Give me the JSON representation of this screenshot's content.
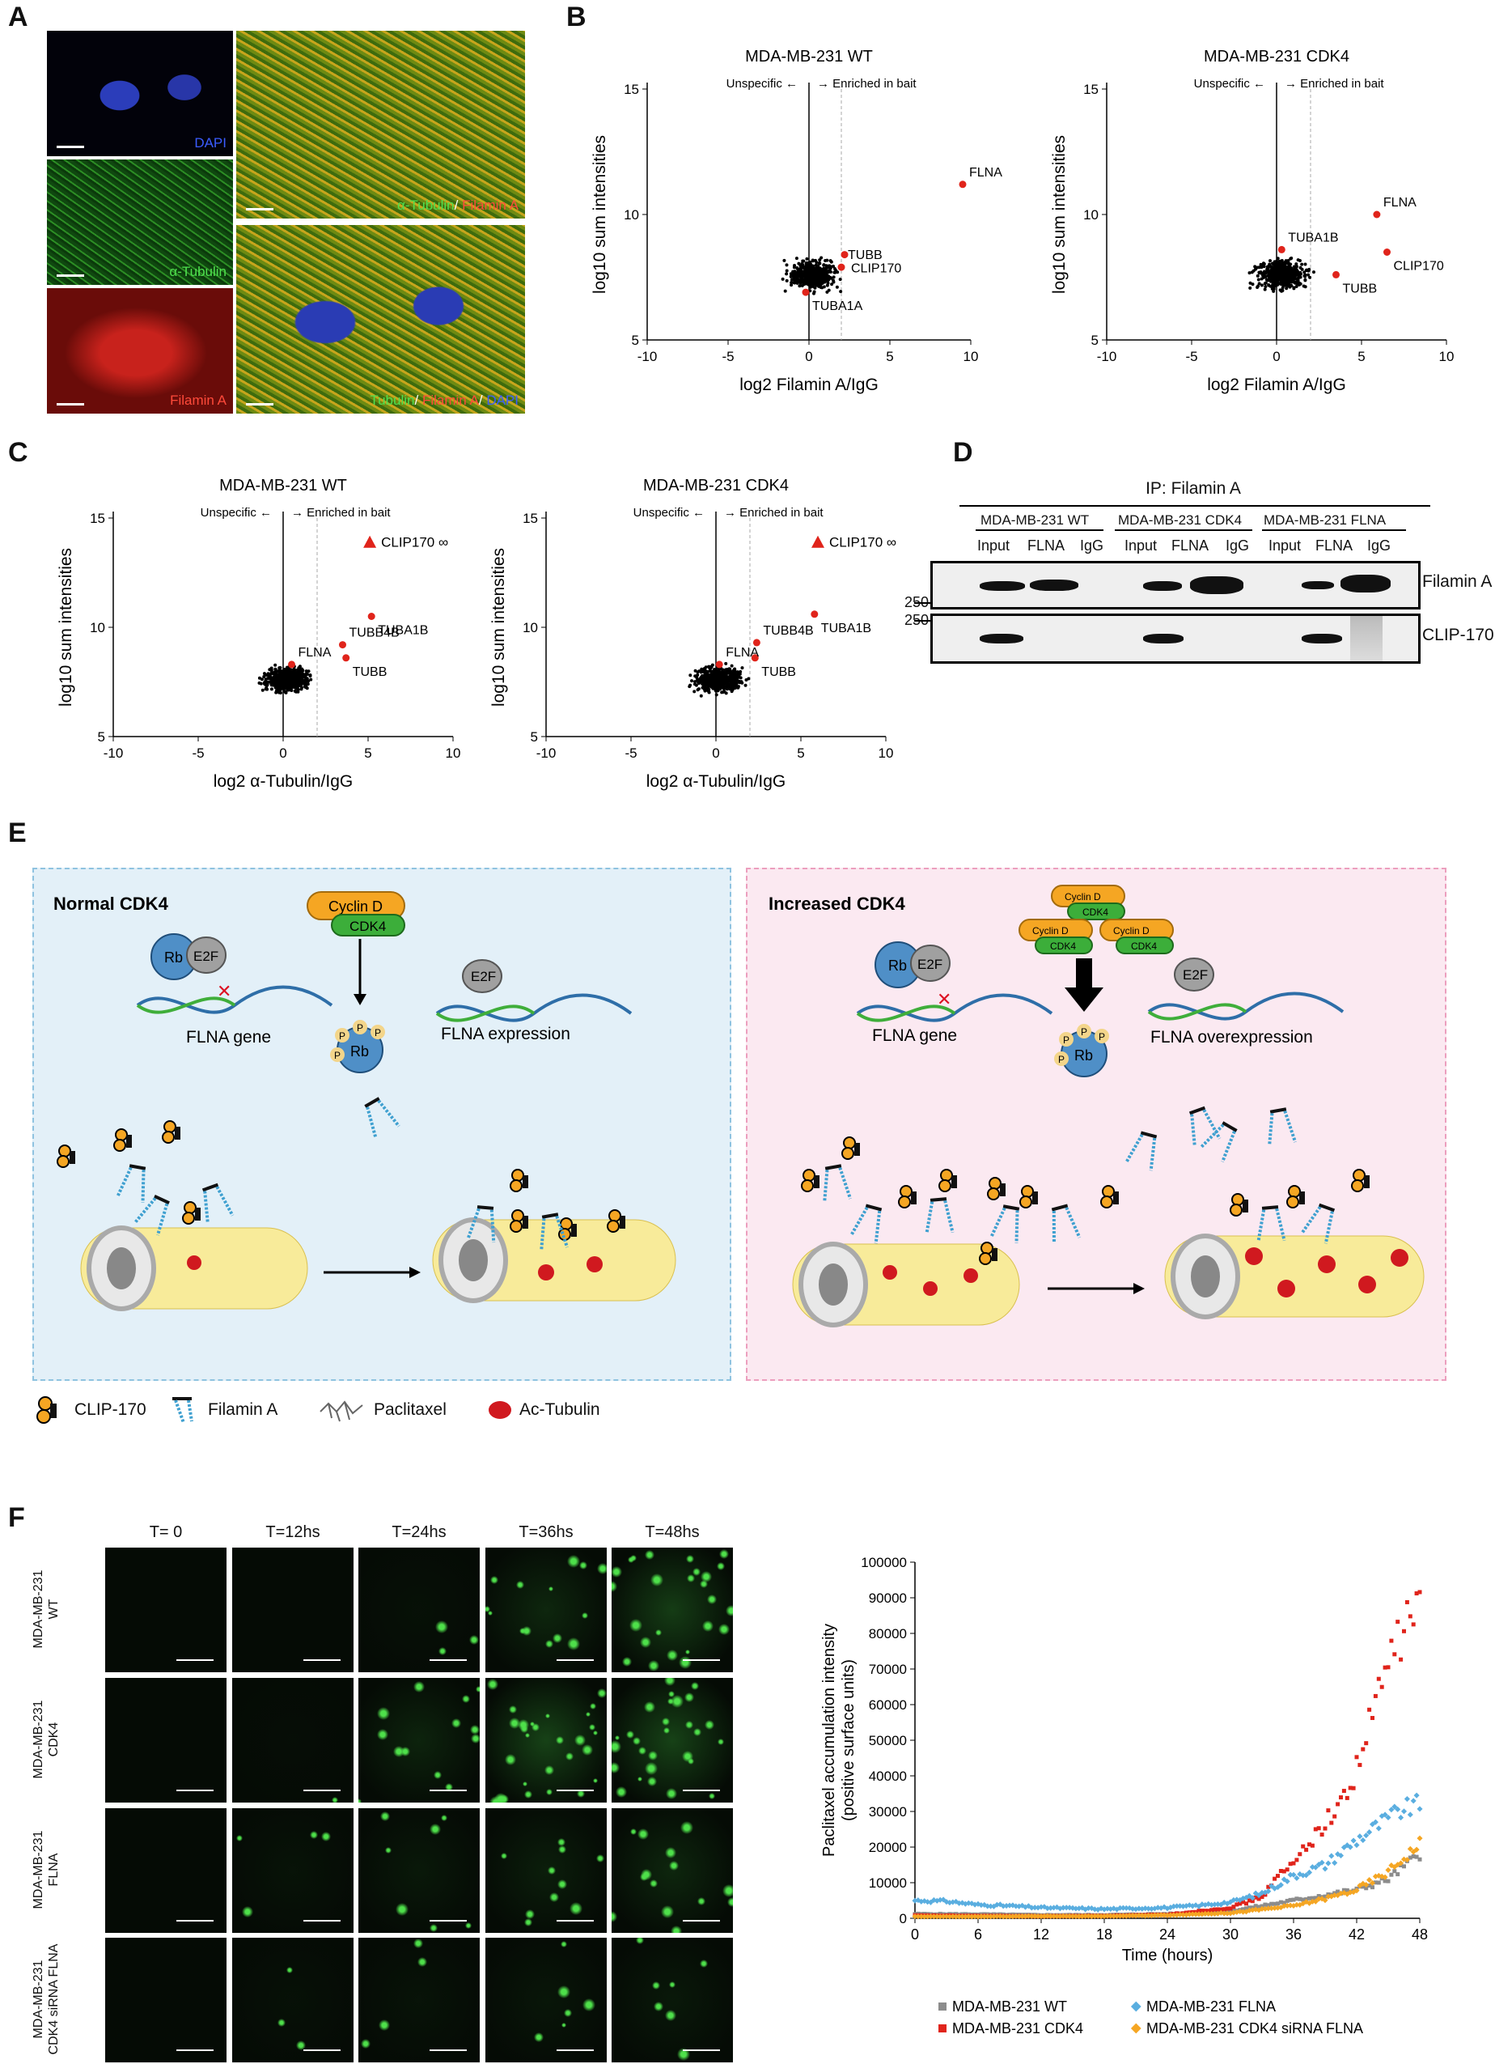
{
  "panel_labels": {
    "A": "A",
    "B": "B",
    "C": "C",
    "D": "D",
    "E": "E",
    "F": "F"
  },
  "panelA": {
    "captions": [
      "DAPI",
      "α-Tubulin",
      "Filamin A"
    ],
    "merge1": {
      "p1": "α-Tubulin",
      "sep": "/ ",
      "p2": "Filamin A"
    },
    "merge2": {
      "p1": "Tubulin",
      "sep1": "/ ",
      "p2": "Filamin A",
      "sep2": "/ ",
      "p3": "DAPI"
    }
  },
  "volcano_annot": {
    "unspecific": "Unspecific",
    "enriched": "Enriched in bait",
    "inf": "∞"
  },
  "chart_data": [
    {
      "type": "scatter",
      "title": "MDA-MB-231 WT",
      "xlabel": "log2 Filamin A/IgG",
      "ylabel": "log10 sum intensities",
      "xlim": [
        -10,
        10
      ],
      "ylim": [
        5,
        15
      ],
      "xticks": [
        "-10",
        "-5",
        "0",
        "5",
        "10"
      ],
      "yticks": [
        "5",
        "10",
        "15"
      ],
      "highlight": [
        {
          "label": "FLNA",
          "x": 9.5,
          "y": 11.2
        },
        {
          "label": "CLIP170",
          "x": 2.2,
          "y": 8.4
        },
        {
          "label": "TUBB",
          "x": 2.0,
          "y": 7.9
        },
        {
          "label": "TUBA1A",
          "x": -0.2,
          "y": 6.9
        }
      ]
    },
    {
      "type": "scatter",
      "title": "MDA-MB-231 CDK4",
      "xlabel": "log2 Filamin A/IgG",
      "ylabel": "log10 sum intensities",
      "xlim": [
        -10,
        10
      ],
      "ylim": [
        5,
        15
      ],
      "xticks": [
        "-10",
        "-5",
        "0",
        "5",
        "10"
      ],
      "yticks": [
        "5",
        "10",
        "15"
      ],
      "highlight": [
        {
          "label": "FLNA",
          "x": 5.9,
          "y": 10.0
        },
        {
          "label": "CLIP170",
          "x": 6.5,
          "y": 8.5
        },
        {
          "label": "TUBA1B",
          "x": 0.3,
          "y": 8.6
        },
        {
          "label": "TUBB",
          "x": 3.5,
          "y": 7.6
        }
      ]
    },
    {
      "type": "scatter",
      "title": "MDA-MB-231 WT",
      "xlabel": "log2 α-Tubulin/IgG",
      "ylabel": "log10 sum intensities",
      "xlim": [
        -10,
        10
      ],
      "ylim": [
        5,
        15
      ],
      "xticks": [
        "-10",
        "-5",
        "0",
        "5",
        "10"
      ],
      "yticks": [
        "5",
        "10",
        "15"
      ],
      "highlight": [
        {
          "label": "CLIP170",
          "marker": "triangle",
          "x": 5.1,
          "y": 13.9
        },
        {
          "label": "TUBA1B",
          "x": 5.2,
          "y": 10.5
        },
        {
          "label": "TUBB4B",
          "x": 3.5,
          "y": 9.2
        },
        {
          "label": "TUBB",
          "x": 3.7,
          "y": 8.6
        },
        {
          "label": "FLNA",
          "x": 0.5,
          "y": 8.3
        }
      ]
    },
    {
      "type": "scatter",
      "title": "MDA-MB-231 CDK4",
      "xlabel": "log2 α-Tubulin/IgG",
      "ylabel": "log10 sum intensities",
      "xlim": [
        -10,
        10
      ],
      "ylim": [
        5,
        15
      ],
      "xticks": [
        "-10",
        "-5",
        "0",
        "5",
        "10"
      ],
      "yticks": [
        "5",
        "10",
        "15"
      ],
      "highlight": [
        {
          "label": "CLIP170",
          "marker": "triangle",
          "x": 6.0,
          "y": 13.9
        },
        {
          "label": "TUBA1B",
          "x": 5.8,
          "y": 10.6
        },
        {
          "label": "TUBB4B",
          "x": 2.4,
          "y": 9.3
        },
        {
          "label": "TUBB",
          "x": 2.3,
          "y": 8.6
        },
        {
          "label": "FLNA",
          "x": 0.2,
          "y": 8.3
        }
      ]
    },
    {
      "type": "scatter",
      "title": "",
      "xlabel": "Time (hours)",
      "ylabel": "Paclitaxel accumulation intensity (positive surface units)",
      "xlim": [
        0,
        48
      ],
      "ylim": [
        0,
        100000
      ],
      "xticks": [
        "0",
        "6",
        "12",
        "18",
        "24",
        "30",
        "36",
        "42",
        "48"
      ],
      "yticks": [
        "0",
        "10000",
        "20000",
        "30000",
        "40000",
        "50000",
        "60000",
        "70000",
        "80000",
        "90000",
        "100000"
      ],
      "legend": "bottom",
      "series": [
        {
          "name": "MDA-MB-231 WT",
          "color": "#8c8c8c",
          "marker": "square",
          "x": [
            0,
            6,
            12,
            18,
            24,
            30,
            33,
            36,
            39,
            42,
            45,
            48
          ],
          "y": [
            1200,
            1100,
            900,
            900,
            1200,
            2000,
            3500,
            5000,
            6500,
            8000,
            11000,
            18000
          ]
        },
        {
          "name": "MDA-MB-231 CDK4",
          "color": "#e0241b",
          "marker": "square",
          "x": [
            0,
            6,
            12,
            18,
            24,
            30,
            33,
            34,
            35,
            36,
            37,
            38,
            39,
            40,
            41,
            42,
            43,
            44,
            45,
            46,
            47,
            48
          ],
          "y": [
            800,
            700,
            600,
            700,
            1000,
            3000,
            6000,
            10000,
            13000,
            15000,
            20000,
            23000,
            27000,
            30000,
            35000,
            42000,
            52000,
            62000,
            72000,
            78000,
            84000,
            89000
          ]
        },
        {
          "name": "MDA-MB-231 FLNA",
          "color": "#5aaee0",
          "marker": "diamond",
          "x": [
            0,
            3,
            6,
            9,
            12,
            15,
            18,
            21,
            24,
            27,
            30,
            33,
            36,
            39,
            42,
            44,
            46,
            48
          ],
          "y": [
            5000,
            4800,
            3800,
            3500,
            3000,
            2800,
            2600,
            2800,
            3000,
            3600,
            4500,
            7000,
            12000,
            15000,
            22000,
            26000,
            30000,
            32000
          ]
        },
        {
          "name": "MDA-MB-231 CDK4 siRNA FLNA",
          "color": "#f5a623",
          "marker": "diamond",
          "x": [
            0,
            6,
            12,
            18,
            24,
            30,
            33,
            36,
            39,
            42,
            45,
            48
          ],
          "y": [
            500,
            500,
            600,
            600,
            900,
            1500,
            2500,
            3500,
            5500,
            8000,
            13000,
            21000
          ]
        }
      ]
    }
  ],
  "panelD": {
    "title": "IP: Filamin A",
    "groups": [
      "MDA-MB-231 WT",
      "MDA-MB-231 CDK4",
      "MDA-MB-231 FLNA"
    ],
    "lanes": [
      "Input",
      "FLNA",
      "IgG",
      "Input",
      "FLNA",
      "IgG",
      "Input",
      "FLNA",
      "IgG"
    ],
    "markers": [
      "250",
      "250"
    ],
    "rows": [
      "Filamin A",
      "CLIP-170"
    ]
  },
  "panelE": {
    "left_title": "Normal CDK4",
    "right_title": "Increased CDK4",
    "cyclin": "Cyclin D",
    "cdk4": "CDK4",
    "rb": "Rb",
    "e2f": "E2F",
    "p": "P",
    "flna_gene": "FLNA gene",
    "flna_expression": "FLNA expression",
    "flna_overexpression": "FLNA overexpression",
    "legend": [
      "CLIP-170",
      "Filamin A",
      "Paclitaxel",
      "Ac-Tubulin"
    ],
    "colors": {
      "left_bg": "#e3f0f8",
      "left_border": "#8fc3e0",
      "right_bg": "#fbe9f1",
      "right_border": "#ec9fbe"
    }
  },
  "panelF": {
    "times": [
      "T= 0",
      "T=12hs",
      "T=24hs",
      "T=36hs",
      "T=48hs"
    ],
    "rows": [
      "MDA-MB-231\nWT",
      "MDA-MB-231\nCDK4",
      "MDA-MB-231\nFLNA",
      "MDA-MB-231\nCDK4 siRNA FLNA"
    ]
  }
}
